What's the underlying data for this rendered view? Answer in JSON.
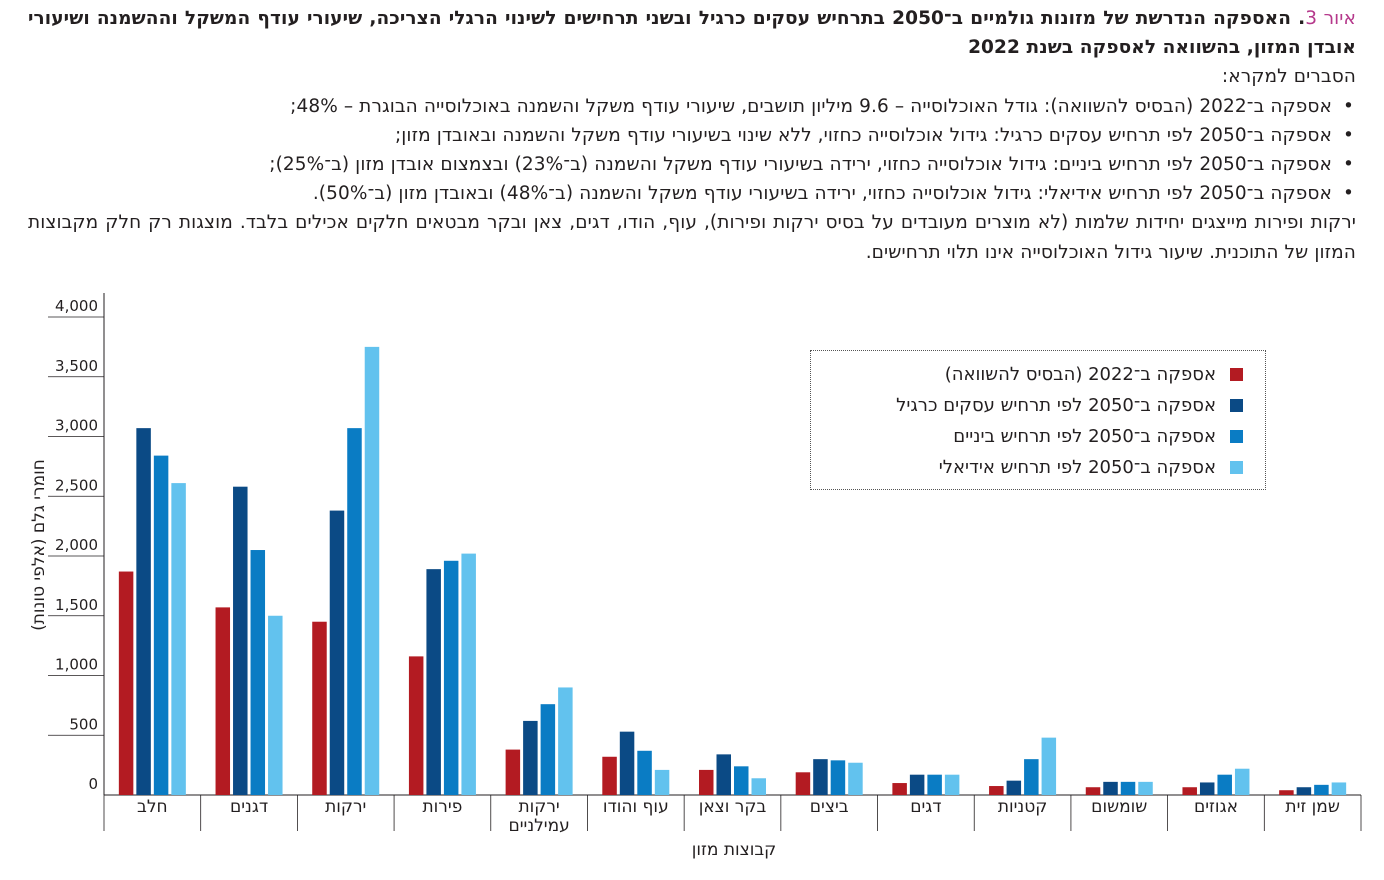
{
  "caption": {
    "figure_label": "איור 3",
    "title": ". האספקה הנדרשת של מזונות גולמיים ב־2050 בתרחיש עסקים כרגיל ובשני תרחישים לשינוי הרגלי הצריכה, שיעורי עודף המשקל וההשמנה ושיעורי אובדן המזון, בהשוואה לאספקה בשנת 2022",
    "legend_intro": "הסברים למקרא:",
    "bullets": [
      "אספקה ב־2022 (הבסיס להשוואה): גודל האוכלוסייה – 9.6 מיליון תושבים, שיעורי עודף משקל והשמנה באוכלוסייה הבוגרת – 48%;",
      "אספקה ב־2050 לפי תרחיש עסקים כרגיל: גידול אוכלוסייה כחזוי, ללא שינוי בשיעורי עודף משקל והשמנה ובאובדן מזון;",
      "אספקה ב־2050 לפי תרחיש ביניים: גידול אוכלוסייה כחזוי, ירידה בשיעורי עודף משקל והשמנה (ב־23%) ובצמצום אובדן מזון (ב־25%);",
      "אספקה ב־2050 לפי תרחיש אידיאלי: גידול אוכלוסייה כחזוי, ירידה בשיעורי עודף משקל והשמנה (ב־48%) ובאובדן מזון (ב־50%)."
    ],
    "note": "ירקות ופירות מייצגים יחידות שלמות (לא מוצרים מעובדים על בסיס ירקות ופירות), עוף, הודו, דגים, צאן ובקר מבטאים חלקים אכילים בלבד. מוצגות רק חלק מקבוצות המזון של התוכנית. שיעור גידול האוכלוסייה אינו תלוי תרחישים."
  },
  "chart_data": {
    "type": "bar",
    "xlabel": "קבוצות מזון",
    "ylabel": "חומרי גלם (אלפי טונות)",
    "ylim": [
      0,
      4000
    ],
    "yticks": [
      0,
      500,
      1000,
      1500,
      2000,
      2500,
      3000,
      3500,
      4000
    ],
    "ytick_labels": [
      "0",
      "500",
      "1,000",
      "1,500",
      "2,000",
      "2,500",
      "3,000",
      "3,500",
      "4,000"
    ],
    "grid": "horizontal",
    "legend_position": "top-right",
    "categories": [
      "חלב",
      "דגנים",
      "ירקות",
      "פירות",
      "ירקות עמילניים",
      "עוף והודו",
      "בקר וצאן",
      "ביצים",
      "דגים",
      "קטניות",
      "שומשום",
      "אגוזים",
      "שמן זית"
    ],
    "series": [
      {
        "name": "אספקה ב־2022 (הבסיס להשוואה)",
        "color": "#b31b22",
        "values": [
          1870,
          1570,
          1450,
          1160,
          380,
          320,
          210,
          190,
          100,
          75,
          65,
          65,
          40
        ]
      },
      {
        "name": "אספקה ב־2050 לפי תרחיש עסקים כרגיל",
        "color": "#0b4a85",
        "values": [
          3070,
          2580,
          2380,
          1890,
          620,
          530,
          340,
          300,
          170,
          120,
          110,
          105,
          65
        ]
      },
      {
        "name": "אספקה ב־2050 לפי תרחיש ביניים",
        "color": "#0a7cc4",
        "values": [
          2840,
          2050,
          3070,
          1960,
          760,
          370,
          240,
          290,
          170,
          300,
          110,
          170,
          85
        ]
      },
      {
        "name": "אספקה ב־2050 לפי תרחיש אידיאלי",
        "color": "#62c2ee",
        "values": [
          2610,
          1500,
          3750,
          2020,
          900,
          210,
          140,
          270,
          170,
          480,
          110,
          220,
          105
        ]
      }
    ]
  }
}
